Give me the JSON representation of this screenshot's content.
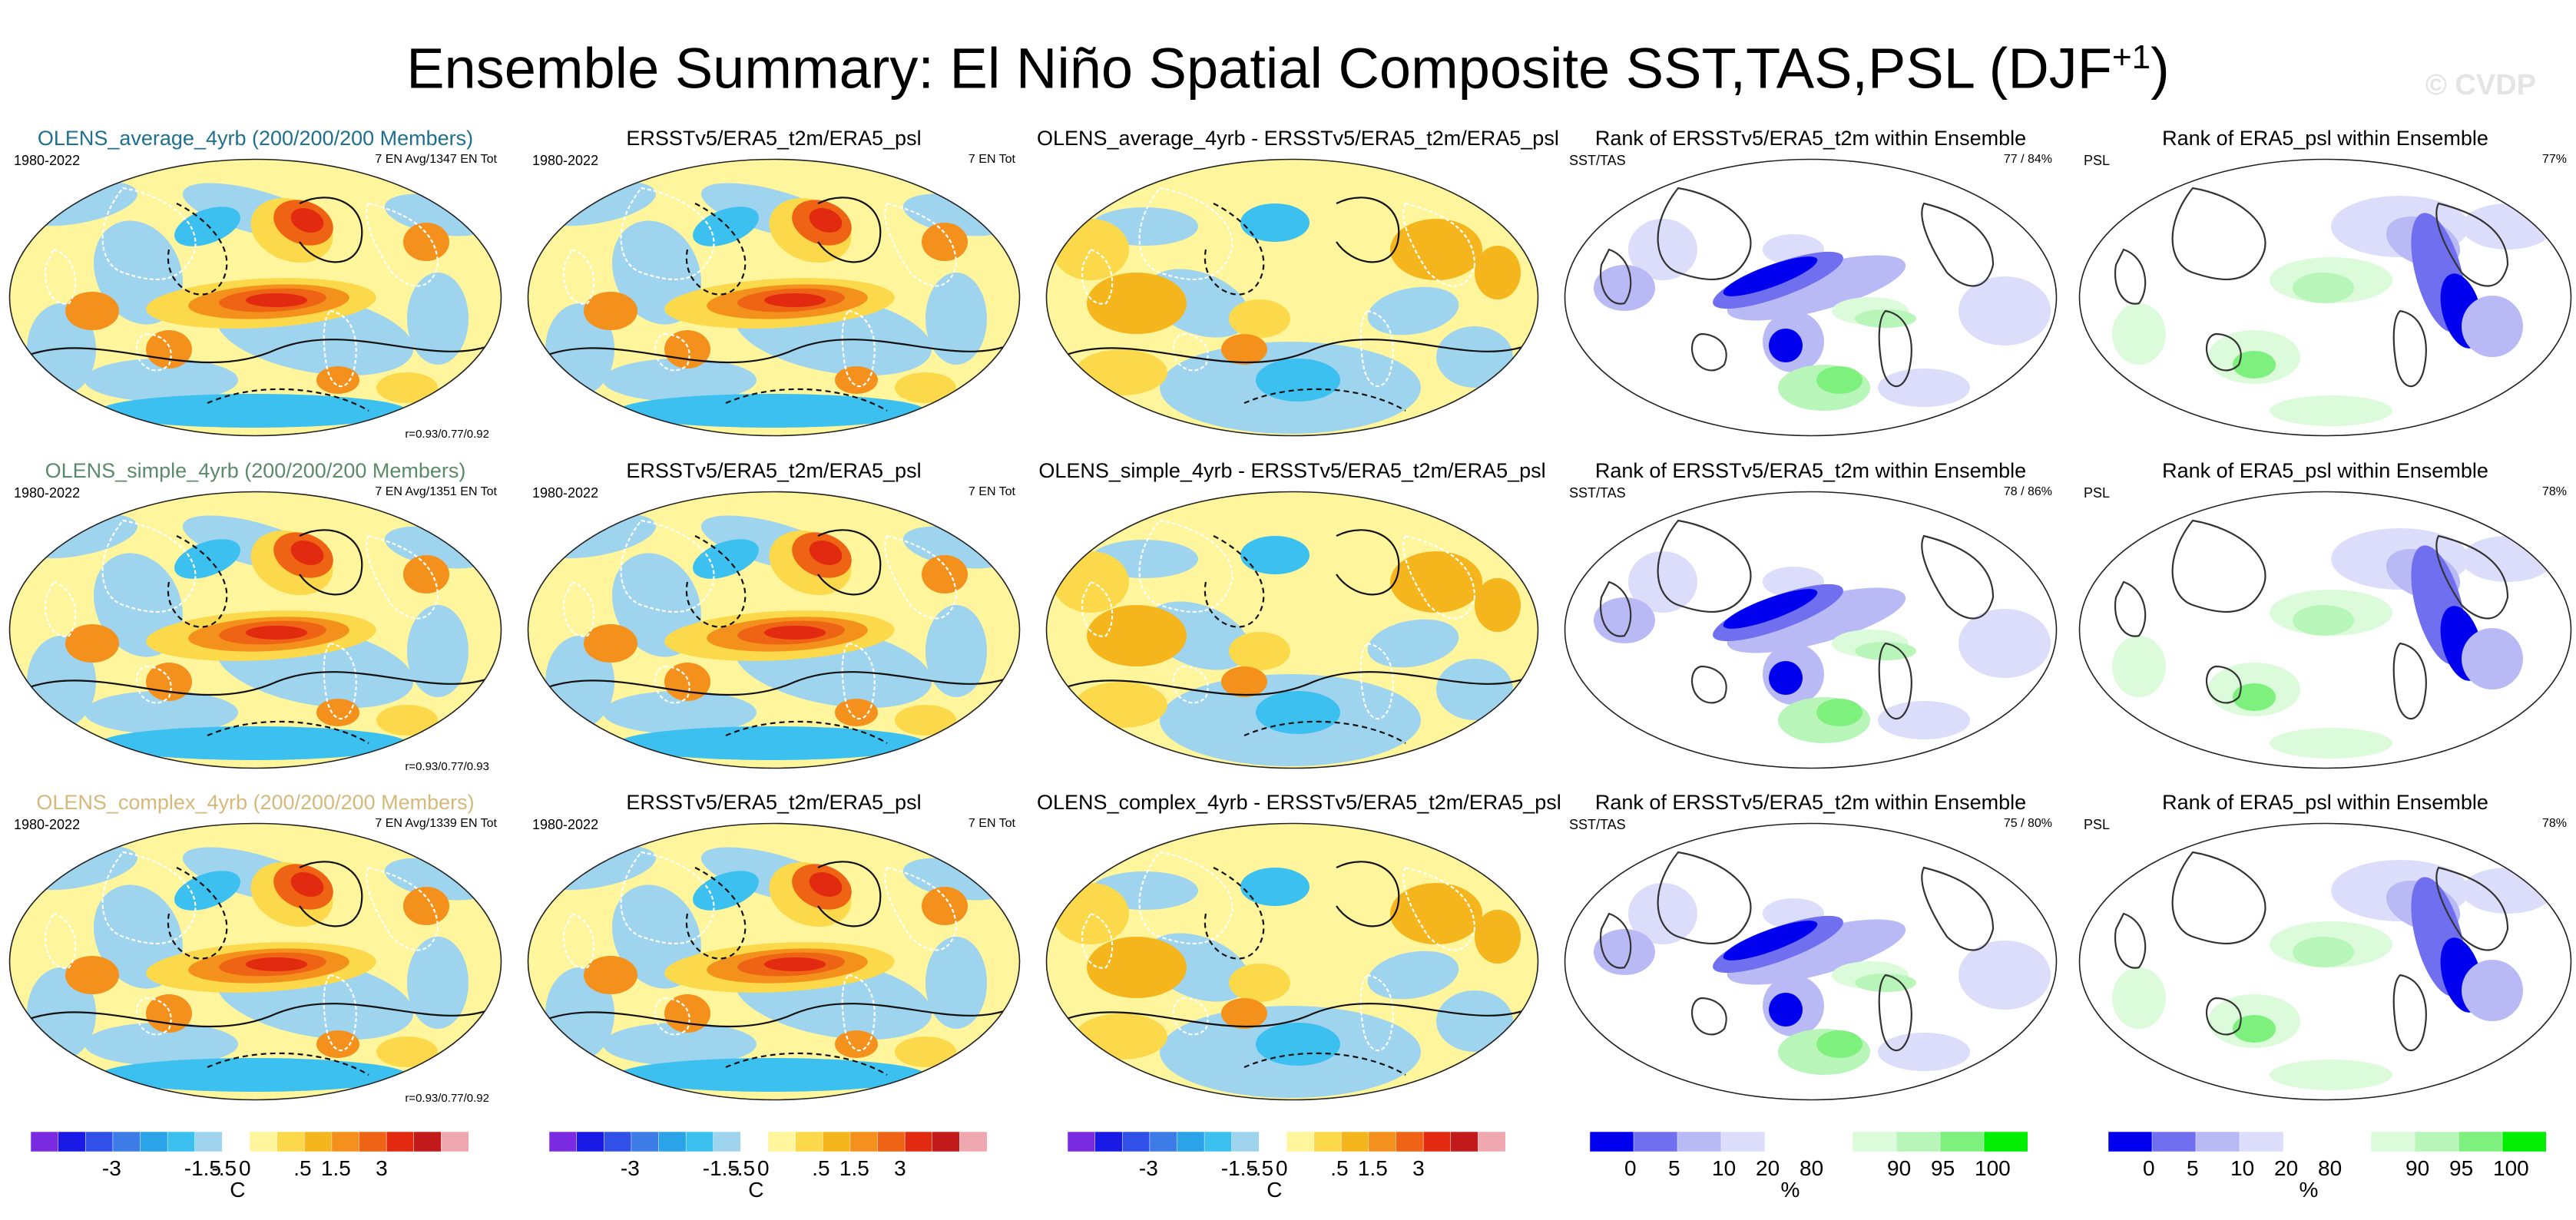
{
  "figure": {
    "title": "Ensemble Summary: El Niño Spatial Composite SST,TAS,PSL (DJF",
    "title_sup": "+1",
    "title_close": ")",
    "watermark": "© CVDP"
  },
  "rows": [
    {
      "color": "#1f6f8f",
      "panels": [
        {
          "title": "OLENS_average_4yrb (200/200/200 Members)",
          "left": "1980-2022",
          "right": "7 EN Avg/1347 EN Tot",
          "bottom": "r=0.93/0.77/0.92"
        },
        {
          "title": "ERSSTv5/ERA5_t2m/ERA5_psl",
          "left": "1980-2022",
          "right": "7 EN Tot",
          "bottom": ""
        },
        {
          "title": "OLENS_average_4yrb - ERSSTv5/ERA5_t2m/ERA5_psl",
          "left": "",
          "right": "",
          "bottom": ""
        },
        {
          "title": "Rank of ERSSTv5/ERA5_t2m within Ensemble",
          "left": "SST/TAS",
          "right": "77 /  84%",
          "bottom": ""
        },
        {
          "title": "Rank of ERA5_psl within Ensemble",
          "left": "PSL",
          "right": "77%",
          "bottom": ""
        }
      ]
    },
    {
      "color": "#5b8a6a",
      "panels": [
        {
          "title": "OLENS_simple_4yrb (200/200/200 Members)",
          "left": "1980-2022",
          "right": "7 EN Avg/1351 EN Tot",
          "bottom": "r=0.93/0.77/0.93"
        },
        {
          "title": "ERSSTv5/ERA5_t2m/ERA5_psl",
          "left": "1980-2022",
          "right": "7 EN Tot",
          "bottom": ""
        },
        {
          "title": "OLENS_simple_4yrb - ERSSTv5/ERA5_t2m/ERA5_psl",
          "left": "",
          "right": "",
          "bottom": ""
        },
        {
          "title": "Rank of ERSSTv5/ERA5_t2m within Ensemble",
          "left": "SST/TAS",
          "right": "78 /  86%",
          "bottom": ""
        },
        {
          "title": "Rank of ERA5_psl within Ensemble",
          "left": "PSL",
          "right": "78%",
          "bottom": ""
        }
      ]
    },
    {
      "color": "#d4b97a",
      "panels": [
        {
          "title": "OLENS_complex_4yrb (200/200/200 Members)",
          "left": "1980-2022",
          "right": "7 EN Avg/1339 EN Tot",
          "bottom": "r=0.93/0.77/0.92"
        },
        {
          "title": "ERSSTv5/ERA5_t2m/ERA5_psl",
          "left": "1980-2022",
          "right": "7 EN Tot",
          "bottom": ""
        },
        {
          "title": "OLENS_complex_4yrb - ERSSTv5/ERA5_t2m/ERA5_psl",
          "left": "",
          "right": "",
          "bottom": ""
        },
        {
          "title": "Rank of ERSSTv5/ERA5_t2m within Ensemble",
          "left": "SST/TAS",
          "right": "75 /  80%",
          "bottom": ""
        },
        {
          "title": "Rank of ERA5_psl within Ensemble",
          "left": "PSL",
          "right": "78%",
          "bottom": ""
        }
      ]
    }
  ],
  "colorbars": {
    "anomaly": {
      "colors": [
        "#7a2be2",
        "#1a1ae6",
        "#3050e8",
        "#3d7be6",
        "#2aa3e8",
        "#3cc0ef",
        "#9fd4ee",
        "#ffffff",
        "#fff59c",
        "#fbd94a",
        "#f5b51c",
        "#f3911c",
        "#ee6414",
        "#e22a10",
        "#c21a1a",
        "#f0a8b0"
      ],
      "labels": [
        "-3",
        "-1.5",
        "-.5",
        "0",
        ".5",
        "1.5",
        "3"
      ],
      "unit": "C"
    },
    "rank": {
      "colors": [
        "#0000ee",
        "#6f6ff0",
        "#b9b9f5",
        "#dcdcfb",
        "#ffffff",
        "#ffffff",
        "#dbfbdb",
        "#b8f5b8",
        "#7ef07e",
        "#00ee00"
      ],
      "labels": [
        "0",
        "5",
        "10",
        "20",
        "80",
        "90",
        "95",
        "100"
      ],
      "unit": "%"
    }
  }
}
